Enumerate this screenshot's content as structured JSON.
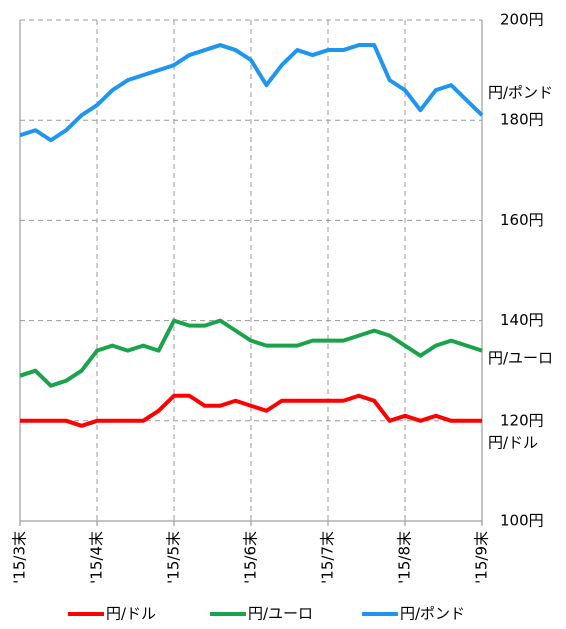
{
  "chart_data": {
    "type": "line",
    "categories": [
      "'15/3末",
      null,
      null,
      null,
      null,
      "'15/4末",
      null,
      null,
      null,
      null,
      "'15/5末",
      null,
      null,
      null,
      null,
      "'15/6末",
      null,
      null,
      null,
      null,
      "'15/7末",
      null,
      null,
      null,
      null,
      "'15/8末",
      null,
      null,
      null,
      null,
      "'15/9末"
    ],
    "series": [
      {
        "name": "円/ドル",
        "color": "#ff0000",
        "values": [
          120,
          120,
          120,
          120,
          119,
          120,
          120,
          120,
          120,
          122,
          125,
          125,
          123,
          123,
          124,
          123,
          122,
          124,
          124,
          124,
          124,
          124,
          125,
          124,
          120,
          121,
          120,
          121,
          120,
          120,
          120
        ]
      },
      {
        "name": "円/ユーロ",
        "color": "#1aa34a",
        "values": [
          129,
          130,
          127,
          128,
          130,
          134,
          135,
          134,
          135,
          134,
          140,
          139,
          139,
          140,
          138,
          136,
          135,
          135,
          135,
          136,
          136,
          136,
          137,
          138,
          137,
          135,
          133,
          135,
          136,
          135,
          134
        ]
      },
      {
        "name": "円/ポンド",
        "color": "#1e96f0",
        "values": [
          177,
          178,
          176,
          178,
          181,
          183,
          186,
          188,
          189,
          190,
          191,
          193,
          194,
          195,
          194,
          192,
          187,
          191,
          194,
          193,
          194,
          194,
          195,
          195,
          188,
          186,
          182,
          186,
          187,
          184,
          181
        ]
      }
    ],
    "ylim": [
      100,
      200
    ],
    "yticks": [
      {
        "value": 100,
        "label": "100円"
      },
      {
        "value": 120,
        "label": "120円"
      },
      {
        "value": 140,
        "label": "140円"
      },
      {
        "value": 160,
        "label": "160円"
      },
      {
        "value": 180,
        "label": "180円"
      },
      {
        "value": 200,
        "label": "200円"
      }
    ],
    "grid": true,
    "legend": "bottom"
  }
}
